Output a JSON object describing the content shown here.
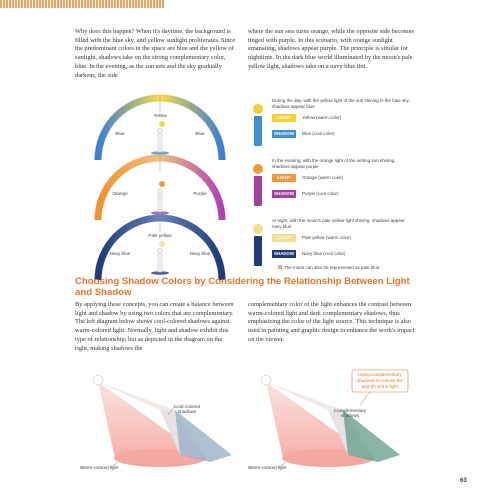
{
  "intro": {
    "col1": "Why does this happen? When it's daytime, the background is filled with the blue sky, and yellow sunlight proliferates. Since the predominant colors in the space are blue and the yellow of sunlight, shadows take on the strong complementary color, blue. In the evening, as the sun sets and the sky gradually darkens, the side",
    "col2": "where the sun sets turns orange, while the opposite side becomes tinged with purple. In this scenario, with orange sunlight emanating, shadows appear purple. The principle is similar for nighttime. In the dark blue world illuminated by the moon's pale yellow light, shadows take on a navy blue tint."
  },
  "diagrams": [
    {
      "caption": "During the day, with the yellow light of the sun shining in the blue sky, shadows appear blue",
      "arc_top": "Yellow",
      "arc_left": "Blue",
      "arc_right": "Blue",
      "light_tag": "LIGHT",
      "light": "Yellow (warm color)",
      "shadow_tag": "SHADOW",
      "shadow": "Blue (cool color)"
    },
    {
      "caption": "In the evening, with the orange light of the setting sun shining, shadows appear purple",
      "arc_top": null,
      "arc_left": "Orange",
      "arc_right": "Purple",
      "light_tag": "LIGHT",
      "light": "Orange (warm color)",
      "shadow_tag": "SHADOW",
      "shadow": "Purple (cool color)"
    },
    {
      "caption": "At night, with the moon's pale yellow light shining, shadows appear navy blue",
      "arc_top": "Pale yellow",
      "arc_left": "Navy blue",
      "arc_right": "Navy blue",
      "light_tag": "LIGHT",
      "light": "Pale yellow (warm color)",
      "shadow_tag": "SHADOW",
      "shadow": "Navy blue (cool color)"
    }
  ],
  "note": "The moon can also be represented as pale blue",
  "section": {
    "heading": "Choosing Shadow Colors by Considering the Relationship Between Light and Shadow",
    "col1": "By applying these concepts, you can create a balance between light and shadow by using two colors that are complementary. The left diagram below shows cool-colored shadows against warm-colored light. Normally, light and shadow exhibit this type of relationship; but as depicted in the diagram on the right, making shadows the",
    "col2": "complementary color of the light enhances the contrast between warm-colored light and dark complementary shadows, thus emphasizing the color of the light source. This technique is also used in painting and graphic design to enhance the work's impact on the viewer."
  },
  "illustrations": {
    "left": {
      "shadow_label": "Cool-colored shadows",
      "light_label": "Warm-colored light"
    },
    "right": {
      "callout": "Using complementary shadows to convey the warmth of the light.",
      "shadow_label": "Complementary shadows",
      "light_label": "Warm-colored light"
    }
  },
  "page_number": "63"
}
